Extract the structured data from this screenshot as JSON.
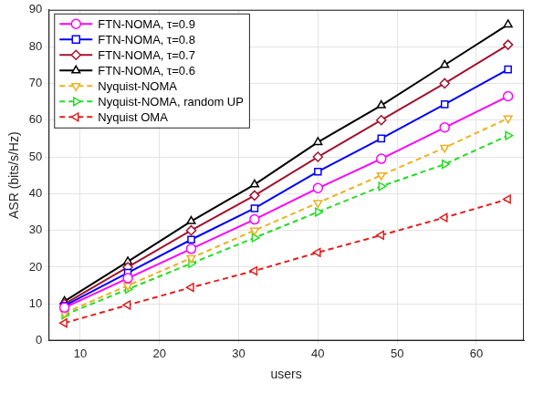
{
  "chart_data": {
    "type": "line",
    "x_label": "users",
    "y_label": "ASR (bits/s/Hz)",
    "x": [
      8,
      16,
      24,
      32,
      40,
      48,
      56,
      64
    ],
    "xlim": [
      6,
      66
    ],
    "xticks": [
      10,
      20,
      30,
      40,
      50,
      60
    ],
    "ylim": [
      0,
      90
    ],
    "yticks": [
      0,
      10,
      20,
      30,
      40,
      50,
      60,
      70,
      80,
      90
    ],
    "grid": true,
    "legend": "upper left",
    "series": [
      {
        "name": "FTN-NOMA, τ=0.9",
        "color": "#ff00ff",
        "marker": "circle",
        "line_style": "solid",
        "values": [
          9.0,
          17.0,
          25.0,
          33.0,
          41.5,
          49.5,
          58.0,
          66.5
        ]
      },
      {
        "name": "FTN-NOMA, τ=0.8",
        "color": "#0000ff",
        "marker": "square",
        "line_style": "solid",
        "values": [
          9.5,
          18.5,
          27.5,
          36.0,
          46.0,
          55.0,
          64.3,
          73.8
        ]
      },
      {
        "name": "FTN-NOMA, τ=0.7",
        "color": "#a2142f",
        "marker": "diamond",
        "line_style": "solid",
        "values": [
          10.0,
          20.0,
          30.0,
          39.5,
          50.0,
          60.0,
          70.0,
          80.5
        ]
      },
      {
        "name": "FTN-NOMA, τ=0.6",
        "color": "#000000",
        "marker": "triangle-up",
        "line_style": "solid",
        "values": [
          10.7,
          21.5,
          32.5,
          42.5,
          54.0,
          64.0,
          75.0,
          86.0
        ]
      },
      {
        "name": "Nyquist-NOMA",
        "color": "#edb120",
        "marker": "triangle-down",
        "line_style": "dashed",
        "values": [
          7.5,
          15.0,
          22.5,
          30.0,
          37.5,
          45.0,
          52.5,
          60.5
        ]
      },
      {
        "name": "Nyquist-NOMA, random UP",
        "color": "#22dd22",
        "marker": "triangle-right",
        "line_style": "dashed",
        "values": [
          7.0,
          14.0,
          21.0,
          28.0,
          35.0,
          42.0,
          48.0,
          55.8
        ]
      },
      {
        "name": "Nyquist OMA",
        "color": "#e02020",
        "marker": "triangle-left",
        "line_style": "dashed",
        "values": [
          4.8,
          9.7,
          14.5,
          19.0,
          24.0,
          28.7,
          33.5,
          38.5
        ]
      }
    ]
  }
}
